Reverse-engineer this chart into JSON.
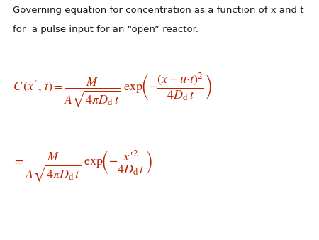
{
  "background_color": "#ffffff",
  "text_color": "#1a1a1a",
  "equation_color": "#bb2200",
  "title_text_line1": "Governing equation for concentration as a function of x and t",
  "title_text_line2": "for  a pulse input for an “open” reactor.",
  "title_fontsize": 9.5,
  "eq_fontsize": 13,
  "figsize": [
    4.5,
    3.38
  ],
  "dpi": 100
}
